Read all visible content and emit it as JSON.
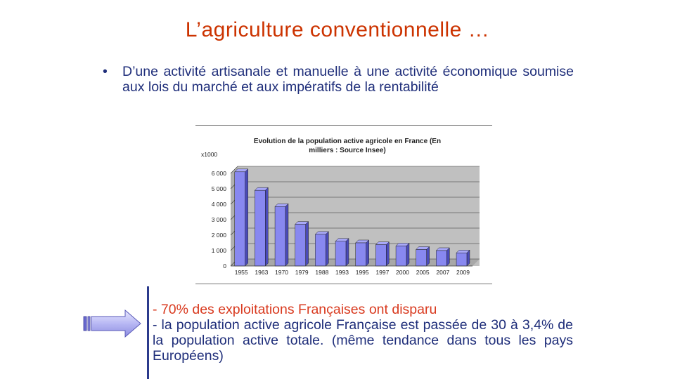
{
  "slide": {
    "title": "L’agriculture conventionnelle …",
    "bullet_symbol": "•",
    "bullet": "D’une activité artisanale et manuelle à une activité économique soumise aux lois du marché et aux impératifs de la rentabilité",
    "conclusion_line1": "- 70% des exploitations Françaises ont disparu",
    "conclusion_line2": "- la population active agricole Française est passée de 30 à 3,4% de la population active totale. (même tendance dans tous les pays Européens)"
  },
  "colors": {
    "title": "#cc3300",
    "bullet_text": "#1f2e7a",
    "highlight": "#d93a1f",
    "bar_face": "#8888f0",
    "bar_side": "#4a4ab8",
    "plot_back": "#c0c0c0",
    "floor": "#a8a8a8"
  },
  "chart_data": {
    "type": "bar",
    "title_line1": "Evolution de la population active agricole en France (En",
    "title_line2": "milliers : Source Insee)",
    "unit_label": "x1000",
    "categories": [
      "1955",
      "1963",
      "1970",
      "1979",
      "1988",
      "1993",
      "1995",
      "1997",
      "2000",
      "2005",
      "2007",
      "2009"
    ],
    "values": [
      6100,
      4900,
      3850,
      2700,
      2050,
      1600,
      1500,
      1380,
      1300,
      1070,
      1000,
      850
    ],
    "ylim": [
      0,
      6000
    ],
    "yticks": [
      0,
      1000,
      2000,
      3000,
      4000,
      5000,
      6000
    ],
    "ytick_labels": [
      "0",
      "1 000",
      "2 000",
      "3 000",
      "4 000",
      "5 000",
      "6 000"
    ],
    "grid": true,
    "legend": "none"
  }
}
